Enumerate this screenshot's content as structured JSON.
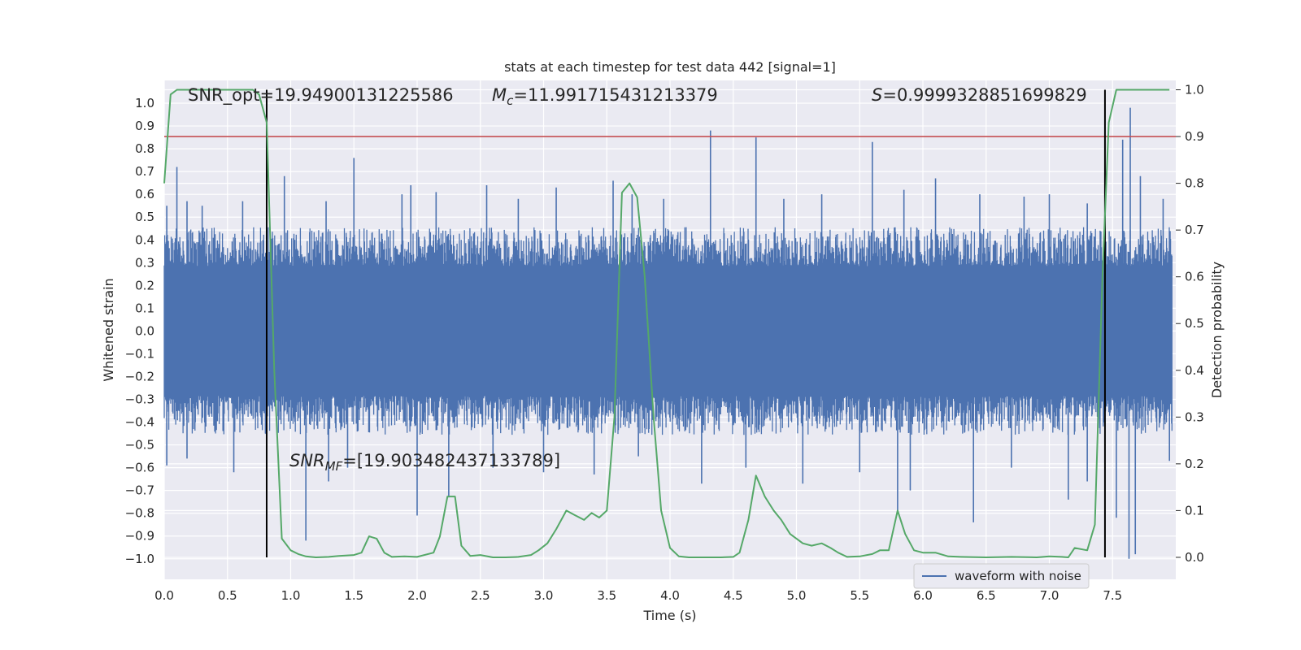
{
  "chart_data": {
    "type": "line",
    "title": "stats at each timestep for test data 442 [signal=1]",
    "xlabel": "Time (s)",
    "ylabel": "Whitened strain",
    "y2label": "Detection probability",
    "xlim": [
      0.0,
      8.0
    ],
    "ylim": [
      -1.09,
      1.1
    ],
    "y2lim": [
      -0.047,
      1.02
    ],
    "x_ticks": [
      0.0,
      0.5,
      1.0,
      1.5,
      2.0,
      2.5,
      3.0,
      3.5,
      4.0,
      4.5,
      5.0,
      5.5,
      6.0,
      6.5,
      7.0,
      7.5
    ],
    "x_tick_labels": [
      "0.0",
      "0.5",
      "1.0",
      "1.5",
      "2.0",
      "2.5",
      "3.0",
      "3.5",
      "4.0",
      "4.5",
      "5.0",
      "5.5",
      "6.0",
      "6.5",
      "7.0",
      "7.5"
    ],
    "y_ticks": [
      -1.0,
      -0.9,
      -0.8,
      -0.7,
      -0.6,
      -0.5,
      -0.4,
      -0.3,
      -0.2,
      -0.1,
      0.0,
      0.1,
      0.2,
      0.3,
      0.4,
      0.5,
      0.6,
      0.7,
      0.8,
      0.9,
      1.0
    ],
    "y_tick_labels": [
      "−1.0",
      "−0.9",
      "−0.8",
      "−0.7",
      "−0.6",
      "−0.5",
      "−0.4",
      "−0.3",
      "−0.2",
      "−0.1",
      "0.0",
      "0.1",
      "0.2",
      "0.3",
      "0.4",
      "0.5",
      "0.6",
      "0.7",
      "0.8",
      "0.9",
      "1.0"
    ],
    "y2_ticks": [
      0.0,
      0.1,
      0.2,
      0.3,
      0.4,
      0.5,
      0.6,
      0.7,
      0.8,
      0.9,
      1.0
    ],
    "y2_tick_labels": [
      "0.0",
      "0.1",
      "0.2",
      "0.3",
      "0.4",
      "0.5",
      "0.6",
      "0.7",
      "0.8",
      "0.9",
      "1.0"
    ],
    "grid": true,
    "legend": {
      "position": "bottom-right",
      "entries": [
        "waveform with noise"
      ]
    },
    "annotations": {
      "snr_opt": "SNR_opt=19.94900131225586",
      "mc_symbol": "M",
      "mc_sub": "c",
      "mc_value": "=11.991715431213379",
      "s_symbol": "S",
      "s_value": "=0.9999328851699829",
      "snr_mf_symbol": "SNR",
      "snr_mf_sub": "MF",
      "snr_mf_value": "=[19.903482437133789]"
    },
    "threshold_y2": 0.9,
    "vertical_lines_x": [
      0.81,
      7.44
    ],
    "waveform": {
      "name": "waveform with noise",
      "color": "#4c72b0",
      "core_amplitude": 0.38,
      "spikes_up": [
        [
          0.02,
          0.55
        ],
        [
          0.1,
          0.72
        ],
        [
          0.18,
          0.57
        ],
        [
          0.3,
          0.55
        ],
        [
          0.62,
          0.57
        ],
        [
          0.95,
          0.68
        ],
        [
          1.28,
          0.57
        ],
        [
          1.5,
          0.76
        ],
        [
          1.88,
          0.6
        ],
        [
          1.95,
          0.64
        ],
        [
          2.15,
          0.61
        ],
        [
          2.55,
          0.64
        ],
        [
          2.8,
          0.58
        ],
        [
          3.1,
          0.63
        ],
        [
          3.55,
          0.66
        ],
        [
          3.7,
          0.6
        ],
        [
          3.95,
          0.58
        ],
        [
          4.32,
          0.88
        ],
        [
          4.68,
          0.85
        ],
        [
          4.9,
          0.58
        ],
        [
          5.2,
          0.6
        ],
        [
          5.6,
          0.83
        ],
        [
          5.85,
          0.62
        ],
        [
          6.1,
          0.67
        ],
        [
          6.45,
          0.6
        ],
        [
          6.8,
          0.59
        ],
        [
          7.0,
          0.6
        ],
        [
          7.3,
          0.56
        ],
        [
          7.58,
          0.84
        ],
        [
          7.64,
          0.98
        ],
        [
          7.72,
          0.68
        ],
        [
          7.9,
          0.58
        ]
      ],
      "spikes_down": [
        [
          0.02,
          -0.59
        ],
        [
          0.18,
          -0.56
        ],
        [
          0.55,
          -0.62
        ],
        [
          0.8,
          -0.45
        ],
        [
          1.12,
          -0.92
        ],
        [
          1.3,
          -0.66
        ],
        [
          1.45,
          -0.6
        ],
        [
          2.0,
          -0.81
        ],
        [
          2.25,
          -0.73
        ],
        [
          2.6,
          -0.6
        ],
        [
          3.0,
          -0.62
        ],
        [
          3.4,
          -0.63
        ],
        [
          3.75,
          -0.55
        ],
        [
          4.25,
          -0.67
        ],
        [
          4.6,
          -0.6
        ],
        [
          5.05,
          -0.67
        ],
        [
          5.5,
          -0.62
        ],
        [
          5.8,
          -0.8
        ],
        [
          5.9,
          -0.7
        ],
        [
          6.4,
          -0.84
        ],
        [
          6.7,
          -0.6
        ],
        [
          7.15,
          -0.74
        ],
        [
          7.3,
          -0.66
        ],
        [
          7.53,
          -0.82
        ],
        [
          7.63,
          -1.0
        ],
        [
          7.68,
          -0.98
        ],
        [
          7.95,
          -0.57
        ]
      ]
    },
    "probability": {
      "name": "Detection probability",
      "color": "#55a868",
      "x": [
        0.0,
        0.05,
        0.1,
        0.15,
        0.2,
        0.25,
        0.3,
        0.35,
        0.4,
        0.45,
        0.5,
        0.55,
        0.6,
        0.65,
        0.7,
        0.75,
        0.81,
        0.87,
        0.93,
        1.0,
        1.06,
        1.12,
        1.2,
        1.3,
        1.38,
        1.5,
        1.56,
        1.62,
        1.68,
        1.74,
        1.8,
        1.9,
        2.0,
        2.13,
        2.18,
        2.24,
        2.3,
        2.35,
        2.42,
        2.5,
        2.6,
        2.7,
        2.8,
        2.9,
        2.96,
        3.03,
        3.1,
        3.18,
        3.25,
        3.32,
        3.38,
        3.44,
        3.5,
        3.56,
        3.62,
        3.68,
        3.74,
        3.8,
        3.87,
        3.93,
        4.0,
        4.07,
        4.15,
        4.3,
        4.4,
        4.5,
        4.55,
        4.62,
        4.68,
        4.75,
        4.82,
        4.88,
        4.95,
        5.05,
        5.12,
        5.2,
        5.27,
        5.33,
        5.4,
        5.5,
        5.6,
        5.66,
        5.73,
        5.8,
        5.86,
        5.93,
        6.0,
        6.1,
        6.2,
        6.3,
        6.5,
        6.7,
        6.9,
        7.0,
        7.1,
        7.15,
        7.2,
        7.3,
        7.36,
        7.42,
        7.47,
        7.53,
        7.6,
        7.68,
        7.78,
        7.85,
        7.95
      ],
      "y": [
        0.8,
        0.99,
        1.0,
        1.0,
        1.0,
        1.0,
        1.0,
        1.0,
        1.0,
        1.0,
        1.0,
        1.0,
        1.0,
        1.0,
        1.0,
        0.99,
        0.93,
        0.4,
        0.04,
        0.015,
        0.007,
        0.002,
        0.0,
        0.001,
        0.003,
        0.005,
        0.01,
        0.045,
        0.04,
        0.01,
        0.001,
        0.002,
        0.001,
        0.01,
        0.045,
        0.13,
        0.13,
        0.025,
        0.003,
        0.005,
        0.0,
        0.0,
        0.001,
        0.005,
        0.015,
        0.03,
        0.06,
        0.1,
        0.09,
        0.08,
        0.095,
        0.085,
        0.1,
        0.3,
        0.78,
        0.8,
        0.77,
        0.6,
        0.3,
        0.1,
        0.02,
        0.002,
        0.0,
        0.0,
        0.0,
        0.001,
        0.01,
        0.08,
        0.175,
        0.13,
        0.1,
        0.08,
        0.05,
        0.03,
        0.025,
        0.03,
        0.02,
        0.01,
        0.001,
        0.002,
        0.007,
        0.015,
        0.015,
        0.1,
        0.05,
        0.015,
        0.01,
        0.01,
        0.002,
        0.001,
        0.0,
        0.001,
        0.0,
        0.002,
        0.001,
        0.0,
        0.02,
        0.015,
        0.07,
        0.6,
        0.93,
        1.0,
        1.0,
        1.0,
        1.0,
        1.0,
        1.0
      ]
    }
  }
}
